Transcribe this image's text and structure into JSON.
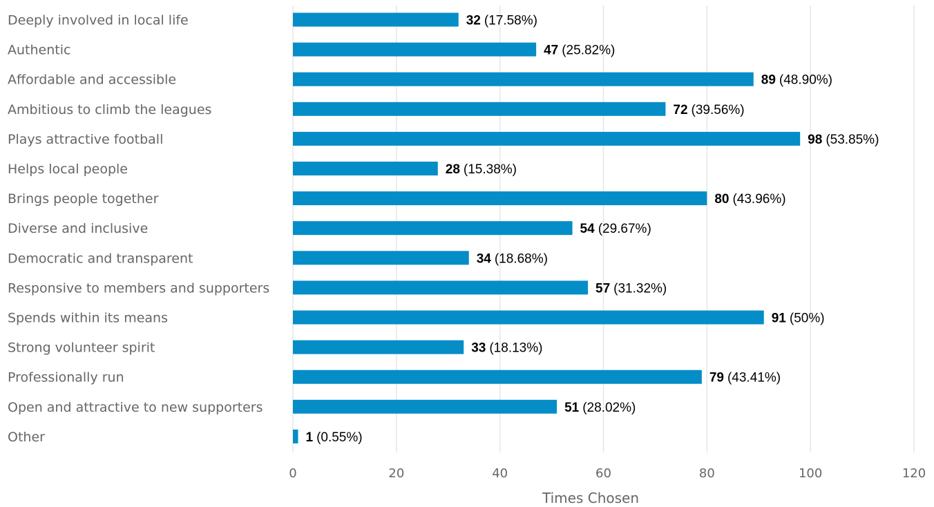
{
  "chart_data": {
    "type": "bar",
    "orientation": "horizontal",
    "categories": [
      "Deeply involved in local life",
      "Authentic",
      "Affordable and accessible",
      "Ambitious to climb the leagues",
      "Plays attractive football",
      "Helps local people",
      "Brings people together",
      "Diverse and inclusive",
      "Democratic and transparent",
      "Responsive to members and supporters",
      "Spends within its means",
      "Strong volunteer spirit",
      "Professionally run",
      "Open and attractive to new supporters",
      "Other"
    ],
    "values": [
      32,
      47,
      89,
      72,
      98,
      28,
      80,
      54,
      34,
      57,
      91,
      33,
      79,
      51,
      1
    ],
    "value_labels": [
      "32",
      "47",
      "89",
      "72",
      "98",
      "28",
      "80",
      "54",
      "34",
      "57",
      "91",
      "33",
      "79",
      "51",
      "1"
    ],
    "percent_labels": [
      "(17.58%)",
      "(25.82%)",
      "(48.90%)",
      "(39.56%)",
      "(53.85%)",
      "(15.38%)",
      "(43.96%)",
      "(29.67%)",
      "(18.68%)",
      "(31.32%)",
      "(50%)",
      "(18.13%)",
      "(43.41%)",
      "(28.02%)",
      "(0.55%)"
    ],
    "xlabel": "Times Chosen",
    "ylabel": "",
    "title": "",
    "xlim": [
      0,
      120
    ],
    "xticks": [
      0,
      20,
      40,
      60,
      80,
      100,
      120
    ],
    "xtick_labels": [
      "0",
      "20",
      "40",
      "60",
      "80",
      "100",
      "120"
    ],
    "grid": "vertical",
    "bar_color": "#058dc7",
    "grid_color": "#e6e6e6"
  }
}
